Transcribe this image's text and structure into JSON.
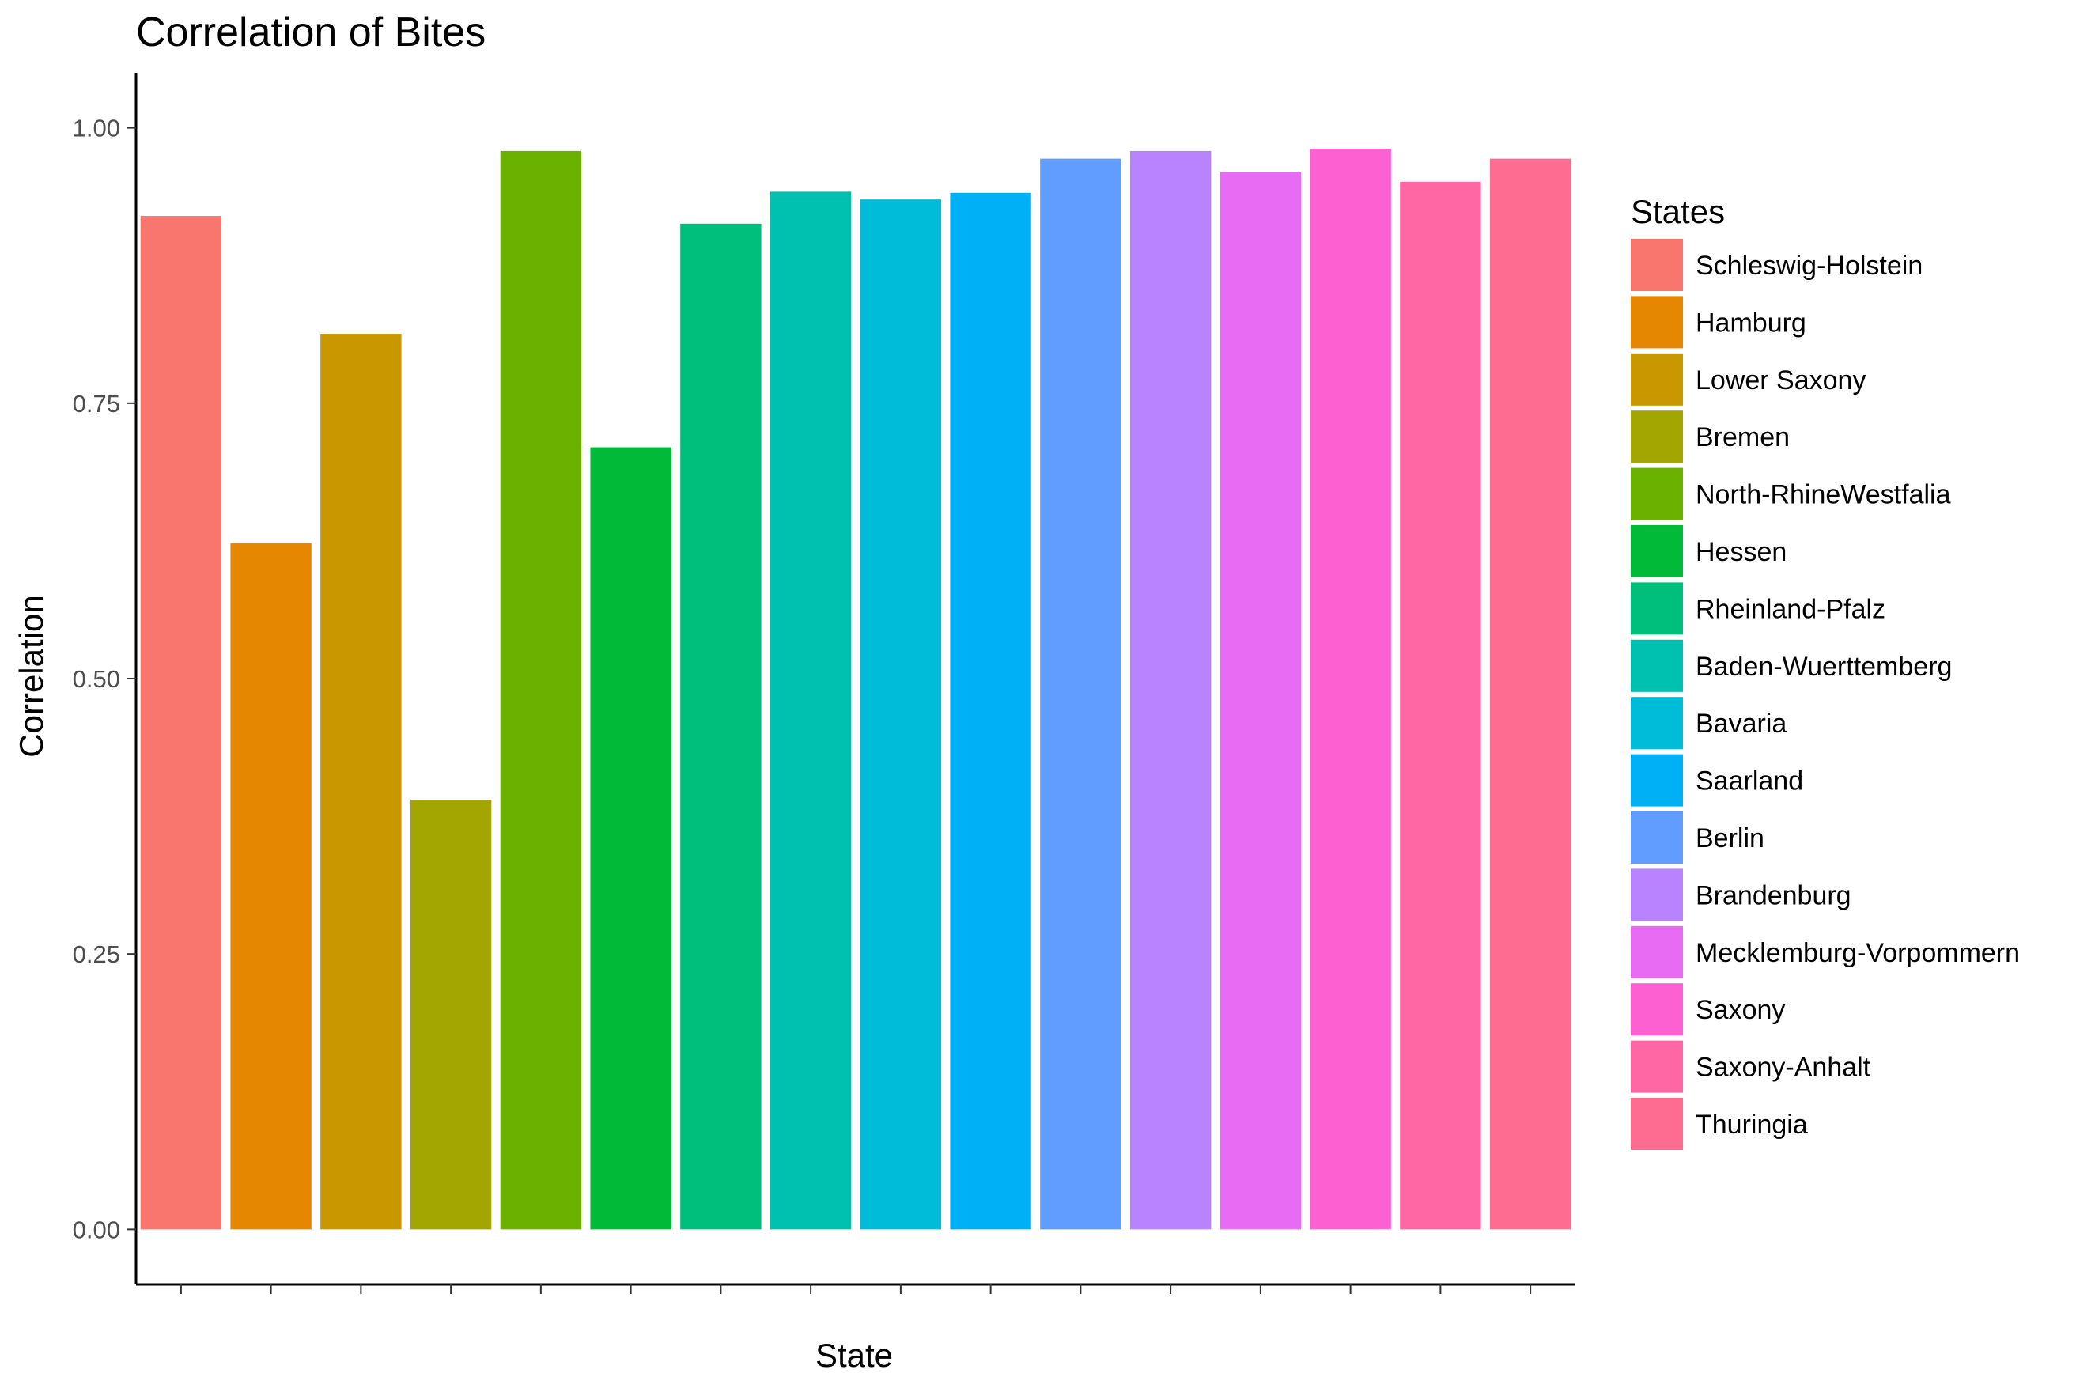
{
  "chart_data": {
    "type": "bar",
    "title": "Correlation of Bites",
    "xlabel": "State",
    "ylabel": "Correlation",
    "ylim": [
      -0.05,
      1.05
    ],
    "yticks": [
      0.0,
      0.25,
      0.5,
      0.75,
      1.0
    ],
    "ytick_labels": [
      "0.00",
      "0.25",
      "0.50",
      "0.75",
      "1.00"
    ],
    "show_x_tick_labels": false,
    "grid": false,
    "legend": {
      "title": "States",
      "position": "right"
    },
    "categories": [
      "Schleswig-Holstein",
      "Hamburg",
      "Lower Saxony",
      "Bremen",
      "North-RhineWestfalia",
      "Hessen",
      "Rheinland-Pfalz",
      "Baden-Wuerttemberg",
      "Bavaria",
      "Saarland",
      "Berlin",
      "Brandenburg",
      "Mecklemburg-Vorpommern",
      "Saxony",
      "Saxony-Anhalt",
      "Thuringia"
    ],
    "values": [
      0.92,
      0.623,
      0.813,
      0.39,
      0.979,
      0.71,
      0.913,
      0.942,
      0.935,
      0.941,
      0.972,
      0.979,
      0.96,
      0.981,
      0.951,
      0.972
    ],
    "colors": [
      "#F8766D",
      "#E58700",
      "#C99800",
      "#A3A500",
      "#6BB100",
      "#00BA38",
      "#00BF7D",
      "#00C0AF",
      "#00BCD8",
      "#00B0F6",
      "#619CFF",
      "#B983FF",
      "#E76BF3",
      "#FD61D1",
      "#FF67A4",
      "#FF6C91"
    ]
  }
}
